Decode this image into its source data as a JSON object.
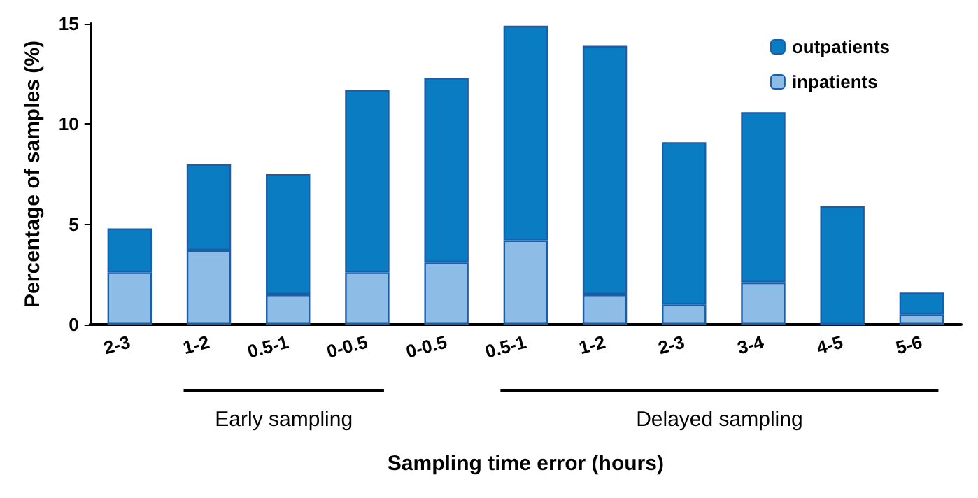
{
  "chart_data": {
    "type": "bar",
    "stacked": true,
    "xlabel": "Sampling time error (hours)",
    "ylabel": "Percentage of samples (%)",
    "categories": [
      "2-3",
      "1-2",
      "0.5-1",
      "0-0.5",
      "0-0.5",
      "0.5-1",
      "1-2",
      "2-3",
      "3-4",
      "4-5",
      "5-6"
    ],
    "series": [
      {
        "name": "inpatients",
        "color": "#8dbde6",
        "values": [
          2.6,
          3.7,
          1.5,
          2.6,
          3.1,
          4.2,
          1.5,
          1.0,
          2.1,
          0,
          0.5
        ]
      },
      {
        "name": "outpatients",
        "color": "#0a7dc2",
        "values": [
          2.2,
          4.3,
          6.0,
          9.1,
          9.2,
          10.7,
          12.4,
          8.1,
          8.5,
          5.9,
          1.1
        ]
      }
    ],
    "ylim": [
      0,
      15
    ],
    "yticks": [
      0,
      5,
      10,
      15
    ],
    "grid": false,
    "legend": "top right",
    "annotations": [
      "Early sampling",
      "Delayed sampling"
    ]
  }
}
